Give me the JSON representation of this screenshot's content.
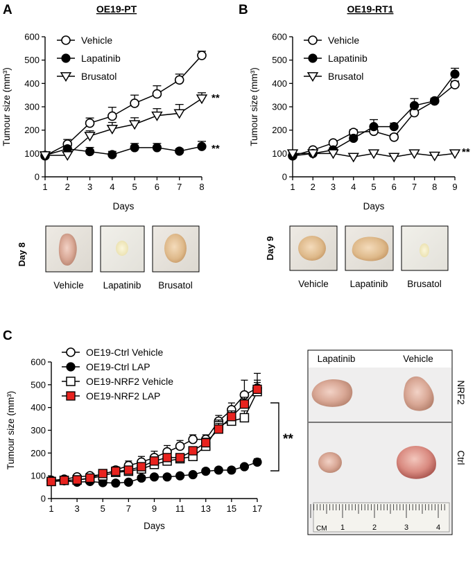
{
  "colors": {
    "axis": "#000000",
    "open": "#ffffff",
    "filled": "#000000",
    "red": "#e8231f"
  },
  "panel_a": {
    "letter": "A",
    "title": "OE19-PT",
    "significance": [
      "**",
      "**"
    ],
    "photo_day": "Day 8",
    "photo_labels": [
      "Vehicle",
      "Lapatinib",
      "Brusatol"
    ]
  },
  "panel_b": {
    "letter": "B",
    "title": "OE19-RT1",
    "significance": [
      "**"
    ],
    "photo_day": "Day 9",
    "photo_labels": [
      "Vehicle",
      "Lapatinib",
      "Brusatol"
    ]
  },
  "panel_c": {
    "letter": "C",
    "significance": "**",
    "photo_col_labels": [
      "Lapatinib",
      "Vehicle"
    ],
    "photo_row_labels": [
      "NRF2",
      "Ctrl"
    ],
    "ruler_unit": "CM",
    "ruler_numbers": [
      "1",
      "2",
      "3",
      "4"
    ]
  },
  "chart_data": [
    {
      "id": "A",
      "type": "line",
      "title": "OE19-PT",
      "xlabel": "Days",
      "ylabel": "Tumour size (mm³)",
      "xlim": [
        1,
        8
      ],
      "ylim": [
        0,
        600
      ],
      "xticks": [
        1,
        2,
        3,
        4,
        5,
        6,
        7,
        8
      ],
      "yticks": [
        0,
        100,
        200,
        300,
        400,
        500,
        600
      ],
      "legend": "top-left",
      "series": [
        {
          "name": "Vehicle",
          "marker": "circle-open",
          "x": [
            1,
            2,
            3,
            4,
            5,
            6,
            7,
            8
          ],
          "values": [
            90,
            140,
            230,
            260,
            315,
            355,
            415,
            520
          ],
          "err": [
            10,
            20,
            22,
            38,
            35,
            35,
            25,
            18
          ]
        },
        {
          "name": "Lapatinib",
          "marker": "circle-filled",
          "x": [
            1,
            2,
            3,
            4,
            5,
            6,
            7,
            8
          ],
          "values": [
            92,
            120,
            108,
            95,
            125,
            125,
            110,
            130
          ],
          "err": [
            8,
            12,
            18,
            14,
            18,
            18,
            10,
            22
          ]
        },
        {
          "name": "Brusatol",
          "marker": "triangle-open",
          "x": [
            1,
            2,
            3,
            4,
            5,
            6,
            7,
            8
          ],
          "values": [
            92,
            92,
            175,
            205,
            225,
            262,
            272,
            335
          ],
          "err": [
            6,
            10,
            22,
            28,
            28,
            30,
            38,
            25
          ]
        }
      ]
    },
    {
      "id": "B",
      "type": "line",
      "title": "OE19-RT1",
      "xlabel": "Days",
      "ylabel": "Tumour size (mm³)",
      "xlim": [
        1,
        9
      ],
      "ylim": [
        0,
        600
      ],
      "xticks": [
        1,
        2,
        3,
        4,
        5,
        6,
        7,
        8,
        9
      ],
      "yticks": [
        0,
        100,
        200,
        300,
        400,
        500,
        600
      ],
      "legend": "top-left",
      "series": [
        {
          "name": "Vehicle",
          "marker": "circle-open",
          "x": [
            1,
            2,
            3,
            4,
            5,
            6,
            7,
            8,
            9
          ],
          "values": [
            90,
            115,
            145,
            190,
            195,
            170,
            275,
            325,
            395
          ],
          "err": [
            6,
            8,
            10,
            12,
            14,
            12,
            22,
            10,
            15
          ]
        },
        {
          "name": "Lapatinib",
          "marker": "circle-filled",
          "x": [
            1,
            2,
            3,
            4,
            5,
            6,
            7,
            8,
            9
          ],
          "values": [
            90,
            100,
            115,
            165,
            215,
            215,
            305,
            325,
            440
          ],
          "err": [
            6,
            8,
            10,
            12,
            30,
            15,
            30,
            12,
            25
          ]
        },
        {
          "name": "Brusatol",
          "marker": "triangle-open",
          "x": [
            1,
            2,
            3,
            4,
            5,
            6,
            7,
            8,
            9
          ],
          "values": [
            100,
            100,
            100,
            85,
            100,
            85,
            100,
            90,
            100
          ],
          "err": [
            5,
            5,
            5,
            5,
            5,
            5,
            5,
            5,
            5
          ]
        }
      ]
    },
    {
      "id": "C",
      "type": "line",
      "title": "",
      "xlabel": "Days",
      "ylabel": "Tumour size (mm³)",
      "xlim": [
        1,
        17
      ],
      "ylim": [
        0,
        600
      ],
      "xticks": [
        1,
        3,
        5,
        7,
        9,
        11,
        13,
        15,
        17
      ],
      "yticks": [
        0,
        100,
        200,
        300,
        400,
        500,
        600
      ],
      "legend": "top-left",
      "series": [
        {
          "name": "OE19-Ctrl Vehicle",
          "marker": "circle-open",
          "x": [
            1,
            2,
            3,
            4,
            5,
            6,
            7,
            8,
            9,
            10,
            11,
            12,
            13,
            14,
            15,
            16,
            17
          ],
          "values": [
            80,
            85,
            95,
            100,
            105,
            125,
            145,
            160,
            180,
            205,
            230,
            260,
            260,
            340,
            390,
            455,
            485
          ],
          "err": [
            6,
            6,
            8,
            8,
            10,
            15,
            20,
            25,
            28,
            28,
            25,
            20,
            20,
            25,
            30,
            65,
            65
          ]
        },
        {
          "name": "OE19-Ctrl LAP",
          "marker": "circle-filled",
          "x": [
            1,
            2,
            3,
            4,
            5,
            6,
            7,
            8,
            9,
            10,
            11,
            12,
            13,
            14,
            15,
            16,
            17
          ],
          "values": [
            75,
            78,
            72,
            75,
            70,
            68,
            72,
            90,
            95,
            95,
            100,
            105,
            120,
            125,
            125,
            140,
            160
          ],
          "err": [
            4,
            4,
            4,
            4,
            4,
            4,
            4,
            6,
            6,
            6,
            6,
            6,
            8,
            8,
            8,
            10,
            15
          ]
        },
        {
          "name": "OE19-NRF2 Vehicle",
          "marker": "square-open",
          "x": [
            1,
            2,
            3,
            4,
            5,
            6,
            7,
            8,
            9,
            10,
            11,
            12,
            13,
            14,
            15,
            16,
            17
          ],
          "values": [
            75,
            80,
            82,
            88,
            100,
            115,
            120,
            130,
            150,
            165,
            175,
            185,
            230,
            320,
            340,
            355,
            470
          ],
          "err": [
            5,
            5,
            5,
            8,
            10,
            10,
            10,
            12,
            15,
            15,
            15,
            15,
            20,
            25,
            25,
            30,
            40
          ]
        },
        {
          "name": "OE19-NRF2 LAP",
          "marker": "square-red",
          "x": [
            1,
            2,
            3,
            4,
            5,
            6,
            7,
            8,
            9,
            10,
            11,
            12,
            13,
            14,
            15,
            16,
            17
          ],
          "values": [
            75,
            80,
            82,
            90,
            110,
            120,
            125,
            140,
            165,
            180,
            180,
            210,
            245,
            305,
            360,
            415,
            480
          ],
          "err": [
            5,
            5,
            5,
            8,
            10,
            10,
            10,
            12,
            15,
            15,
            15,
            15,
            20,
            25,
            25,
            30,
            40
          ]
        }
      ]
    }
  ]
}
